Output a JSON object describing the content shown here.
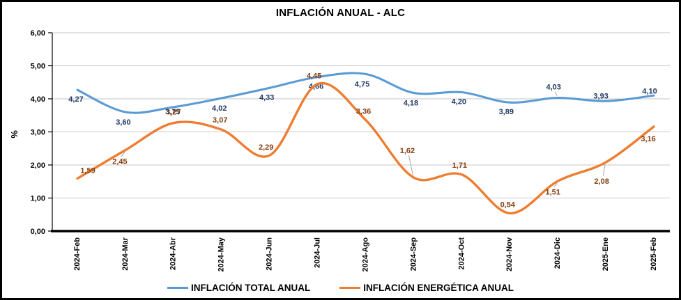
{
  "chart_data": {
    "type": "line",
    "title": "INFLACIÓN ANUAL - ALC",
    "ylabel": "%",
    "ylim": [
      0,
      6
    ],
    "ytick_step": 1,
    "ytick_labels": [
      "0,00",
      "1,00",
      "2,00",
      "3,00",
      "4,00",
      "5,00",
      "6,00"
    ],
    "grid": true,
    "line_smoothing": true,
    "legend_position": "bottom",
    "categories": [
      "2024-Feb",
      "2024-Mar",
      "2024-Abr",
      "2024-May",
      "2024-Jun",
      "2024-Jul",
      "2024-Ago",
      "2024-Sep",
      "2024-Oct",
      "2024-Nov",
      "2024-Dic",
      "2025-Ene",
      "2025-Feb"
    ],
    "series": [
      {
        "name": "INFLACIÓN TOTAL ANUAL",
        "color": "#5B9BD5",
        "label_color": "#1F3864",
        "values": [
          4.27,
          3.6,
          3.75,
          4.02,
          4.33,
          4.66,
          4.75,
          4.18,
          4.2,
          3.89,
          4.03,
          3.93,
          4.1
        ],
        "point_labels": [
          "4,27",
          "3,60",
          "3,75",
          "4,02",
          "4,33",
          "4,66",
          "4,75",
          "4,18",
          "4,20",
          "3,89",
          "4,03",
          "3,93",
          "4,10"
        ]
      },
      {
        "name": "INFLACIÓN ENERGÉTICA ANUAL",
        "color": "#ED7D31",
        "label_color": "#843C0C",
        "values": [
          1.59,
          2.45,
          3.27,
          3.07,
          2.29,
          4.45,
          3.36,
          1.62,
          1.71,
          0.54,
          1.51,
          2.08,
          3.16
        ],
        "point_labels": [
          "1,59",
          "2,45",
          "3,27",
          "3,07",
          "2,29",
          "4,45",
          "3,36",
          "1,62",
          "1,71",
          "0,54",
          "1,51",
          "2,08",
          "3,16"
        ]
      }
    ],
    "axis_color": "#000000",
    "gridline_color": "#C6C6C6"
  }
}
